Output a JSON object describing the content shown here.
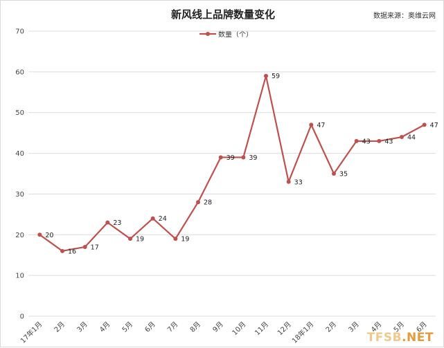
{
  "header": {
    "source": "数据来源：奥维云网"
  },
  "watermark": {
    "part1": "TFSB",
    "part2": ".NET",
    "color1": "#f0c98a",
    "color2": "#e59a3c"
  },
  "colors": {
    "series": "#c0504d",
    "grid": "#dcdcdc"
  },
  "chart_data": {
    "type": "line",
    "title": "新风线上品牌数量变化",
    "xlabel": "",
    "ylabel": "",
    "ylim": [
      0,
      70
    ],
    "yticks": [
      0,
      10,
      20,
      30,
      40,
      50,
      60,
      70
    ],
    "grid": true,
    "legend_position": "top",
    "categories": [
      "17年1月",
      "2月",
      "3月",
      "4月",
      "5月",
      "6月",
      "7月",
      "8月",
      "9月",
      "10月",
      "11月",
      "12月",
      "18年1月",
      "2月",
      "3月",
      "4月",
      "5月",
      "6月"
    ],
    "series": [
      {
        "name": "数量（个）",
        "color": "#c0504d",
        "values": [
          20,
          16,
          17,
          23,
          19,
          24,
          19,
          28,
          39,
          39,
          59,
          33,
          47,
          35,
          43,
          43,
          44,
          47
        ]
      }
    ]
  }
}
